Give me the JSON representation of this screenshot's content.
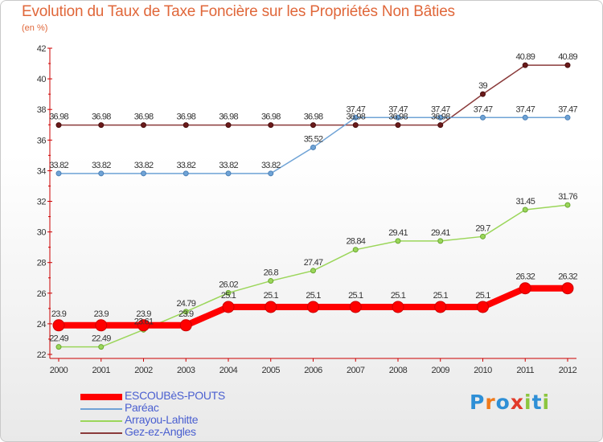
{
  "header": {
    "title": "Evolution du Taux de Taxe Foncière sur les Propriétés Non Bâties",
    "unit": "(en %)"
  },
  "logo": {
    "letters": [
      "P",
      "r",
      "o",
      "x",
      "i",
      "t",
      "i"
    ],
    "colors": [
      "#2e8fd6",
      "#f07a1a",
      "#2e8fd6",
      "#e23a2a",
      "#8cc63f",
      "#2e8fd6",
      "#8cc63f"
    ]
  },
  "chart_data": {
    "type": "line",
    "title": "Evolution du Taux de Taxe Foncière sur les Propriétés Non Bâties",
    "ylabel": "(en %)",
    "x": [
      "2000",
      "2001",
      "2002",
      "2003",
      "2004",
      "2005",
      "2006",
      "2007",
      "2008",
      "2009",
      "2010",
      "2011",
      "2012"
    ],
    "yticks": [
      22,
      24,
      26,
      28,
      30,
      32,
      34,
      36,
      38,
      40,
      42
    ],
    "ylim": [
      22,
      42
    ],
    "grid": false,
    "legend": "bottom-left",
    "series": [
      {
        "name": "ESCOUBèS-POUTS",
        "color": "#ff0000",
        "values": [
          23.9,
          23.9,
          23.9,
          23.9,
          25.1,
          25.1,
          25.1,
          25.1,
          25.1,
          25.1,
          25.1,
          26.32,
          26.32
        ],
        "labels": [
          "23.9",
          "23.9",
          "23.9",
          "23.9",
          "25.1",
          "25.1",
          "25.1",
          "25.1",
          "25.1",
          "25.1",
          "25.1",
          "26.32",
          "26.32"
        ]
      },
      {
        "name": "Paréac",
        "color": "#6fa3d6",
        "values": [
          33.82,
          33.82,
          33.82,
          33.82,
          33.82,
          33.82,
          35.52,
          37.47,
          37.47,
          37.47,
          37.47,
          37.47,
          37.47
        ],
        "labels": [
          "33.82",
          "33.82",
          "33.82",
          "33.82",
          "33.82",
          "33.82",
          "35.52",
          "37.47",
          "37.47",
          "37.47",
          "37.47",
          "37.47",
          "37.47"
        ]
      },
      {
        "name": "Arrayou-Lahitte",
        "color": "#9bd65a",
        "values": [
          22.49,
          22.49,
          23.61,
          24.79,
          26.02,
          26.8,
          27.47,
          28.84,
          29.41,
          29.41,
          29.7,
          31.45,
          31.76
        ],
        "labels": [
          "22.49",
          "22.49",
          "23.61",
          "24.79",
          "26.02",
          "26.8",
          "27.47",
          "28.84",
          "29.41",
          "29.41",
          "29.7",
          "31.45",
          "31.76"
        ]
      },
      {
        "name": "Gez-ez-Angles",
        "color": "#8a3a3a",
        "values": [
          36.98,
          36.98,
          36.98,
          36.98,
          36.98,
          36.98,
          36.98,
          36.98,
          36.98,
          36.98,
          39,
          40.89,
          40.89
        ],
        "labels": [
          "36.98",
          "36.98",
          "36.98",
          "36.98",
          "36.98",
          "36.98",
          "36.98",
          "36.98",
          "36.98",
          "36.98",
          "39",
          "40.89",
          "40.89"
        ]
      }
    ]
  }
}
